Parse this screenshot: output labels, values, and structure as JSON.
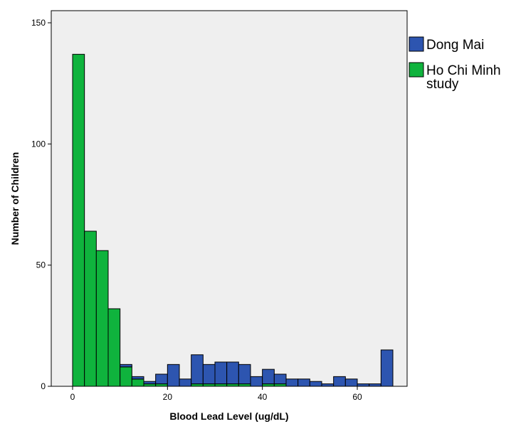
{
  "chart_data": {
    "type": "bar",
    "stacked": true,
    "xlabel": "Blood Lead Level (ug/dL)",
    "ylabel": "Number of Children",
    "xlim": [
      -4.5,
      70.5
    ],
    "ylim": [
      0,
      155
    ],
    "x_ticks": [
      0,
      20,
      40,
      60
    ],
    "y_ticks": [
      0,
      50,
      100,
      150
    ],
    "bin_width": 2.5,
    "bin_starts": [
      0,
      2.5,
      5,
      7.5,
      10,
      12.5,
      15,
      17.5,
      20,
      22.5,
      25,
      27.5,
      30,
      32.5,
      35,
      37.5,
      40,
      42.5,
      45,
      47.5,
      50,
      52.5,
      55,
      57.5,
      60,
      62.5,
      65
    ],
    "series": [
      {
        "name": "Ho Chi Minh study",
        "color": "#0fb33d",
        "values": [
          137,
          64,
          56,
          32,
          8,
          3,
          1,
          1,
          0,
          0,
          1,
          1,
          1,
          1,
          1,
          0,
          1,
          1,
          0,
          0,
          0,
          0,
          0,
          0,
          0,
          0,
          0
        ]
      },
      {
        "name": "Dong Mai",
        "color": "#2d55b0",
        "values": [
          0,
          0,
          0,
          0,
          1,
          1,
          1,
          4,
          9,
          3,
          12,
          8,
          9,
          9,
          8,
          4,
          6,
          4,
          3,
          3,
          2,
          1,
          4,
          3,
          1,
          1,
          15
        ]
      }
    ],
    "legend": {
      "position": "right",
      "entries": [
        {
          "label": "Dong Mai",
          "color": "#2d55b0"
        },
        {
          "label": "Ho Chi Minh study",
          "label_lines": [
            "Ho Chi Minh",
            "study"
          ],
          "color": "#0fb33d"
        }
      ]
    },
    "background_color": "#efefef"
  }
}
